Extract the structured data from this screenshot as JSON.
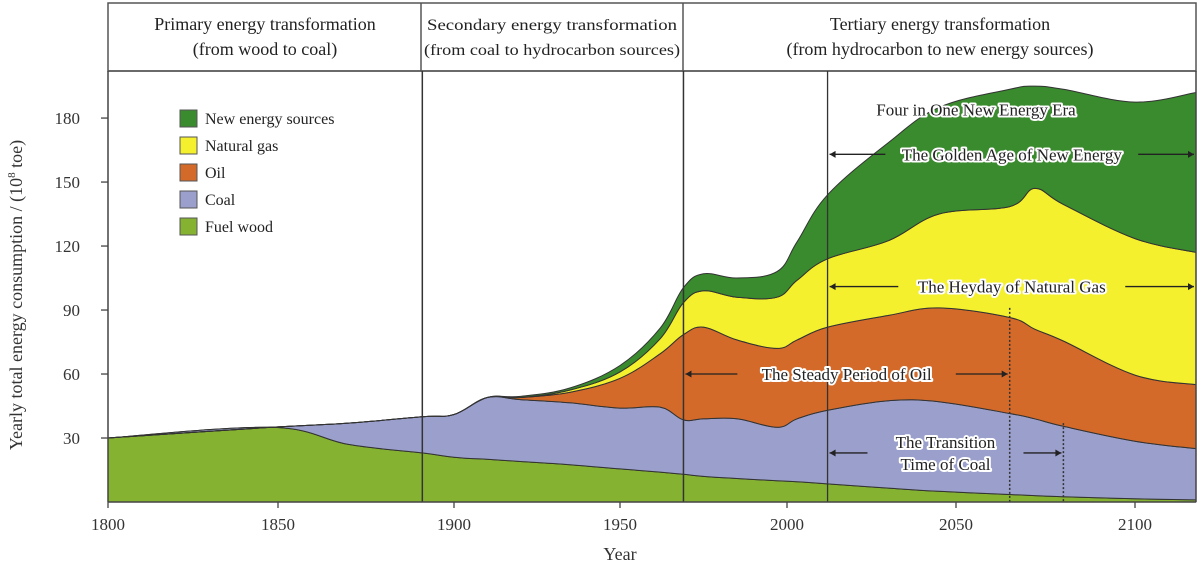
{
  "chart_data": {
    "type": "area",
    "stacked": true,
    "xlabel": "Year",
    "ylabel": "Yearly total energy consumption / (10^8 toe)",
    "xlim": [
      1800,
      2115
    ],
    "ylim": [
      0,
      195
    ],
    "x_ticks": [
      "1800",
      "1850",
      "1900",
      "1950",
      "2000",
      "2050",
      "2100"
    ],
    "y_ticks": [
      "30",
      "60",
      "90",
      "120",
      "150",
      "180"
    ],
    "legend_position": "top-left",
    "x": [
      1800,
      1848,
      1870,
      1891,
      1900,
      1910,
      1920,
      1935,
      1950,
      1962,
      1969,
      1975,
      1985,
      1997,
      2003,
      2012,
      2030,
      2045,
      2065,
      2072,
      2080,
      2100,
      2115
    ],
    "series": [
      {
        "name": "Fuel wood",
        "color": "#86b232",
        "values": [
          30,
          35,
          27,
          23,
          21,
          20,
          19,
          17.5,
          15.5,
          14,
          13,
          12,
          11,
          10,
          9.5,
          8.5,
          6.5,
          5,
          3.5,
          3,
          2.5,
          1.5,
          1
        ]
      },
      {
        "name": "Coal",
        "color": "#9a9fcb",
        "values": [
          0,
          0,
          10,
          17,
          20,
          29,
          29,
          29,
          28.5,
          30.5,
          25.5,
          27,
          28,
          25,
          29.5,
          34.5,
          41,
          42,
          38,
          36,
          33,
          27,
          24
        ]
      },
      {
        "name": "Oil",
        "color": "#d46a2a",
        "values": [
          0,
          0,
          0,
          0,
          0,
          0,
          1,
          5,
          14,
          25,
          40,
          43,
          37,
          37,
          37,
          39,
          40,
          44,
          45,
          42,
          40,
          31,
          30
        ]
      },
      {
        "name": "Natural gas",
        "color": "#f4f02e",
        "values": [
          0,
          0,
          0,
          0,
          0,
          0,
          0,
          1,
          3,
          7,
          15,
          17,
          20,
          24,
          28,
          32,
          35,
          44,
          52,
          66,
          64,
          64,
          62
        ]
      },
      {
        "name": "New energy sources",
        "color": "#3a8a2e",
        "values": [
          0,
          0,
          0,
          0,
          0,
          0,
          0.5,
          1,
          3,
          5,
          7,
          8,
          9,
          12,
          18,
          30,
          46,
          50,
          55,
          48,
          54,
          64,
          75
        ]
      }
    ],
    "eras": [
      {
        "title": "Primary energy transformation",
        "subtitle": "(from wood to coal)",
        "from": 1800,
        "to": 1891
      },
      {
        "title": "Secondary energy transformation",
        "subtitle": "(from coal to hydrocarbon sources)",
        "from": 1891,
        "to": 1969
      },
      {
        "title": "Tertiary energy transformation",
        "subtitle": "(from hydrocarbon to new energy sources)",
        "from": 1969,
        "to": 2115
      }
    ],
    "annotations": [
      {
        "text": "Four in One New Energy Era",
        "x": 2050,
        "y": 184
      },
      {
        "text": "The Golden Age of New Energy",
        "from": 2012,
        "to": 2115,
        "y": 163
      },
      {
        "text": "The Heyday of Natural Gas",
        "from": 2012,
        "to": 2115,
        "y": 101
      },
      {
        "text": "The Steady Period of Oil",
        "from": 1969,
        "to": 2065,
        "y": 60
      },
      {
        "text": "The Transition",
        "text2": "Time of Coal",
        "from": 2012,
        "to": 2080,
        "y": 23
      }
    ],
    "marker_lines": [
      {
        "year": 2012,
        "style": "solid"
      },
      {
        "year": 2065,
        "style": "dotted"
      },
      {
        "year": 2080,
        "style": "dotted"
      }
    ]
  }
}
